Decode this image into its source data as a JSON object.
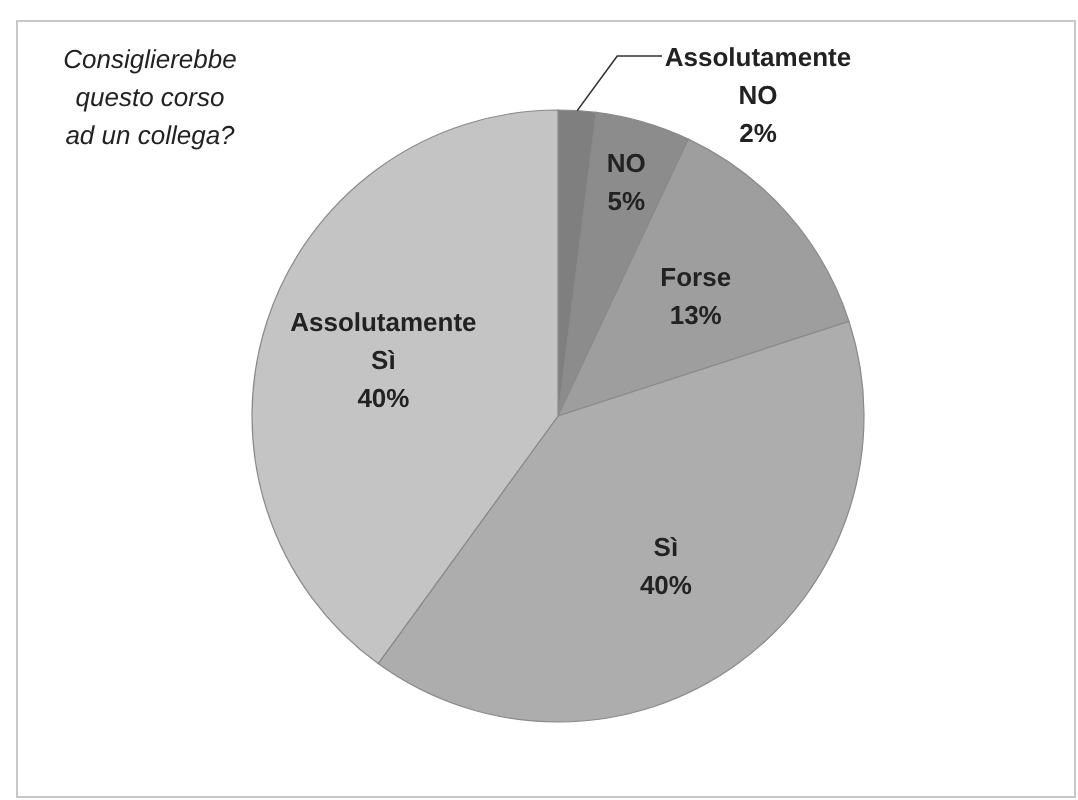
{
  "chart_data": {
    "type": "pie",
    "title": "Consiglierebbe questo corso ad un collega?",
    "categories": [
      "Assolutamente NO",
      "NO",
      "Forse",
      "Sì",
      "Assolutamente Sì"
    ],
    "values": [
      2,
      5,
      13,
      40,
      40
    ],
    "value_labels": [
      "2%",
      "5%",
      "13%",
      "40%",
      "40%"
    ],
    "colors": [
      "#7f7f7f",
      "#8c8c8c",
      "#9e9e9e",
      "#adadad",
      "#c4c4c4"
    ],
    "legend": false
  }
}
